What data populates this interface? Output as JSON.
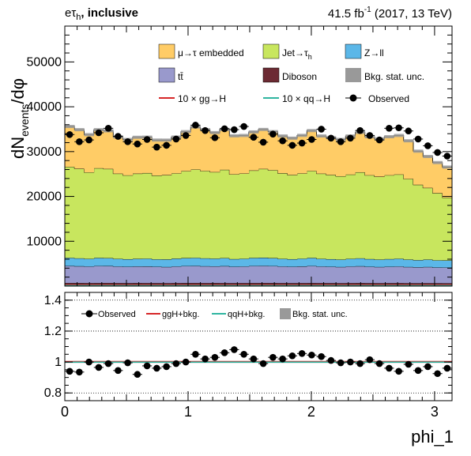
{
  "header": {
    "channel_prefix": "eτ",
    "channel_sub": "h",
    "channel_suffix": ", inclusive",
    "lumi_value": "41.5 fb",
    "lumi_exp": "-1",
    "lumi_suffix": " (2017, 13 TeV)"
  },
  "legend_top": {
    "embedded": "μ→τ embedded",
    "jet_prefix": "Jet→τ",
    "jet_sub": "h",
    "zll": "Z→ll",
    "ttbar": "tt̄",
    "diboson": "Diboson",
    "bkg_unc": "Bkg. stat. unc.",
    "ggh": "10 × gg→H",
    "qqh": "10 × qq→H",
    "observed": "Observed"
  },
  "legend_ratio": {
    "observed": "Observed",
    "ggh": "ggH+bkg.",
    "qqh": "qqH+bkg.",
    "bkg_unc": "Bkg. stat. unc."
  },
  "colors": {
    "embedded": "#ffcc66",
    "jet": "#c8e65e",
    "zll": "#5bb7e8",
    "ttbar": "#9999cc",
    "diboson": "#6c2a33",
    "unc": "#999999",
    "ggh": "#d62728",
    "qqh": "#2fb5a0"
  },
  "chart_data": [
    {
      "type": "bar",
      "stacked": true,
      "ylabel_main": "dN",
      "ylabel_sub": "events",
      "ylabel_tail": "/dφ",
      "xlim": [
        0,
        3.1416
      ],
      "ylim": [
        0,
        58000
      ],
      "yticks": [
        10000,
        20000,
        30000,
        40000,
        50000
      ],
      "bin_width": 0.0785,
      "series": [
        {
          "name": "Diboson",
          "key": "diboson",
          "values": [
            700,
            690,
            680,
            690,
            700,
            680,
            670,
            690,
            680,
            670,
            660,
            680,
            690,
            700,
            680,
            690,
            680,
            670,
            680,
            690,
            700,
            690,
            680,
            670,
            680,
            690,
            680,
            670,
            660,
            680,
            690,
            670,
            660,
            670,
            680,
            660,
            650,
            660,
            650,
            640
          ]
        },
        {
          "name": "tt̄",
          "key": "ttbar",
          "values": [
            3800,
            3750,
            3700,
            3800,
            3780,
            3700,
            3650,
            3700,
            3720,
            3650,
            3600,
            3700,
            3780,
            3800,
            3750,
            3720,
            3780,
            3650,
            3700,
            3800,
            3820,
            3780,
            3700,
            3650,
            3720,
            3800,
            3700,
            3650,
            3600,
            3700,
            3750,
            3650,
            3600,
            3650,
            3700,
            3600,
            3550,
            3600,
            3500,
            3500
          ]
        },
        {
          "name": "Z→ll",
          "key": "zll",
          "values": [
            1800,
            1750,
            1700,
            1800,
            1760,
            1700,
            1680,
            1700,
            1720,
            1650,
            1700,
            1760,
            1780,
            1800,
            1760,
            1720,
            1780,
            1700,
            1720,
            1800,
            1820,
            1780,
            1700,
            1680,
            1720,
            1800,
            1700,
            1680,
            1650,
            1700,
            1750,
            1700,
            1650,
            1700,
            1720,
            1650,
            1600,
            1650,
            1600,
            1600
          ]
        },
        {
          "name": "Jet→τh",
          "key": "jet",
          "values": [
            20300,
            20000,
            19300,
            20000,
            19900,
            19000,
            18700,
            19000,
            19100,
            18700,
            18800,
            19000,
            19400,
            19700,
            19500,
            19300,
            19700,
            18900,
            19000,
            19500,
            19800,
            19600,
            19100,
            18800,
            19000,
            19400,
            19000,
            18800,
            18600,
            18800,
            19200,
            18700,
            18500,
            18700,
            18800,
            18000,
            16800,
            16000,
            15000,
            14000
          ]
        },
        {
          "name": "μ→τ embedded",
          "key": "embedded",
          "values": [
            9000,
            8700,
            8400,
            8600,
            8500,
            8200,
            8000,
            8100,
            8000,
            7900,
            7800,
            8100,
            8800,
            9500,
            9200,
            8800,
            9000,
            8600,
            8500,
            8600,
            8800,
            8600,
            8300,
            8200,
            8500,
            9000,
            8400,
            8300,
            8200,
            8600,
            8900,
            8600,
            8400,
            8600,
            8700,
            8500,
            7500,
            7000,
            6800,
            6800
          ]
        }
      ],
      "signals": [
        {
          "name": "10 × gg→H",
          "key": "ggh",
          "values": [
            240,
            238,
            236,
            238,
            237,
            236,
            235,
            236,
            236,
            235,
            234,
            236,
            238,
            240,
            238,
            237,
            238,
            236,
            236,
            238,
            240,
            238,
            236,
            235,
            236,
            238,
            236,
            235,
            234,
            236,
            237,
            235,
            234,
            235,
            236,
            234,
            233,
            234,
            232,
            232
          ]
        },
        {
          "name": "10 × qq→H",
          "key": "qqh",
          "values": [
            110,
            109,
            108,
            109,
            109,
            108,
            107,
            108,
            108,
            107,
            107,
            108,
            109,
            110,
            109,
            108,
            109,
            108,
            108,
            109,
            110,
            109,
            108,
            107,
            108,
            109,
            108,
            107,
            107,
            108,
            109,
            107,
            107,
            108,
            108,
            107,
            106,
            107,
            106,
            106
          ]
        }
      ],
      "observed": {
        "name": "Observed",
        "x": [
          0.0393,
          0.1178,
          0.1963,
          0.2749,
          0.3534,
          0.432,
          0.5105,
          0.589,
          0.6676,
          0.7461,
          0.8247,
          0.9032,
          0.9817,
          1.0603,
          1.1388,
          1.2174,
          1.2959,
          1.3744,
          1.453,
          1.5315,
          1.6101,
          1.6886,
          1.7671,
          1.8457,
          1.9242,
          2.0028,
          2.0813,
          2.1598,
          2.2384,
          2.3169,
          2.3955,
          2.474,
          2.5525,
          2.6311,
          2.7096,
          2.7882,
          2.8667,
          2.9452,
          3.0238,
          3.1023
        ],
        "y": [
          33800,
          32200,
          32600,
          34200,
          35200,
          33400,
          32200,
          31700,
          32700,
          31000,
          31400,
          32800,
          33600,
          35900,
          34700,
          33100,
          35100,
          34900,
          35600,
          33200,
          32100,
          33900,
          32400,
          31400,
          31900,
          32700,
          35000,
          33000,
          32200,
          33000,
          34700,
          33600,
          32600,
          35200,
          35300,
          34600,
          32800,
          31300,
          29800,
          29000
        ]
      }
    },
    {
      "type": "scatter",
      "xlabel": "phi_1",
      "xlim": [
        0,
        3.1416
      ],
      "xticks": [
        0,
        1,
        2,
        3
      ],
      "ylim": [
        0.75,
        1.45
      ],
      "yticks": [
        0.8,
        1,
        1.2,
        1.4
      ],
      "ytick_labels": [
        "0.8",
        "1",
        "1.2",
        "1.4"
      ],
      "ratio": [
        0.94,
        0.935,
        1.0,
        0.965,
        0.99,
        0.945,
        0.995,
        0.92,
        0.975,
        0.96,
        0.97,
        0.99,
        1.0,
        1.05,
        1.02,
        1.03,
        1.06,
        1.08,
        1.05,
        1.02,
        0.99,
        1.03,
        1.02,
        1.04,
        1.055,
        1.045,
        1.035,
        1.01,
        0.995,
        1.0,
        0.99,
        1.015,
        0.99,
        0.96,
        0.94,
        0.985,
        0.945,
        0.97,
        0.925,
        0.96
      ]
    }
  ]
}
